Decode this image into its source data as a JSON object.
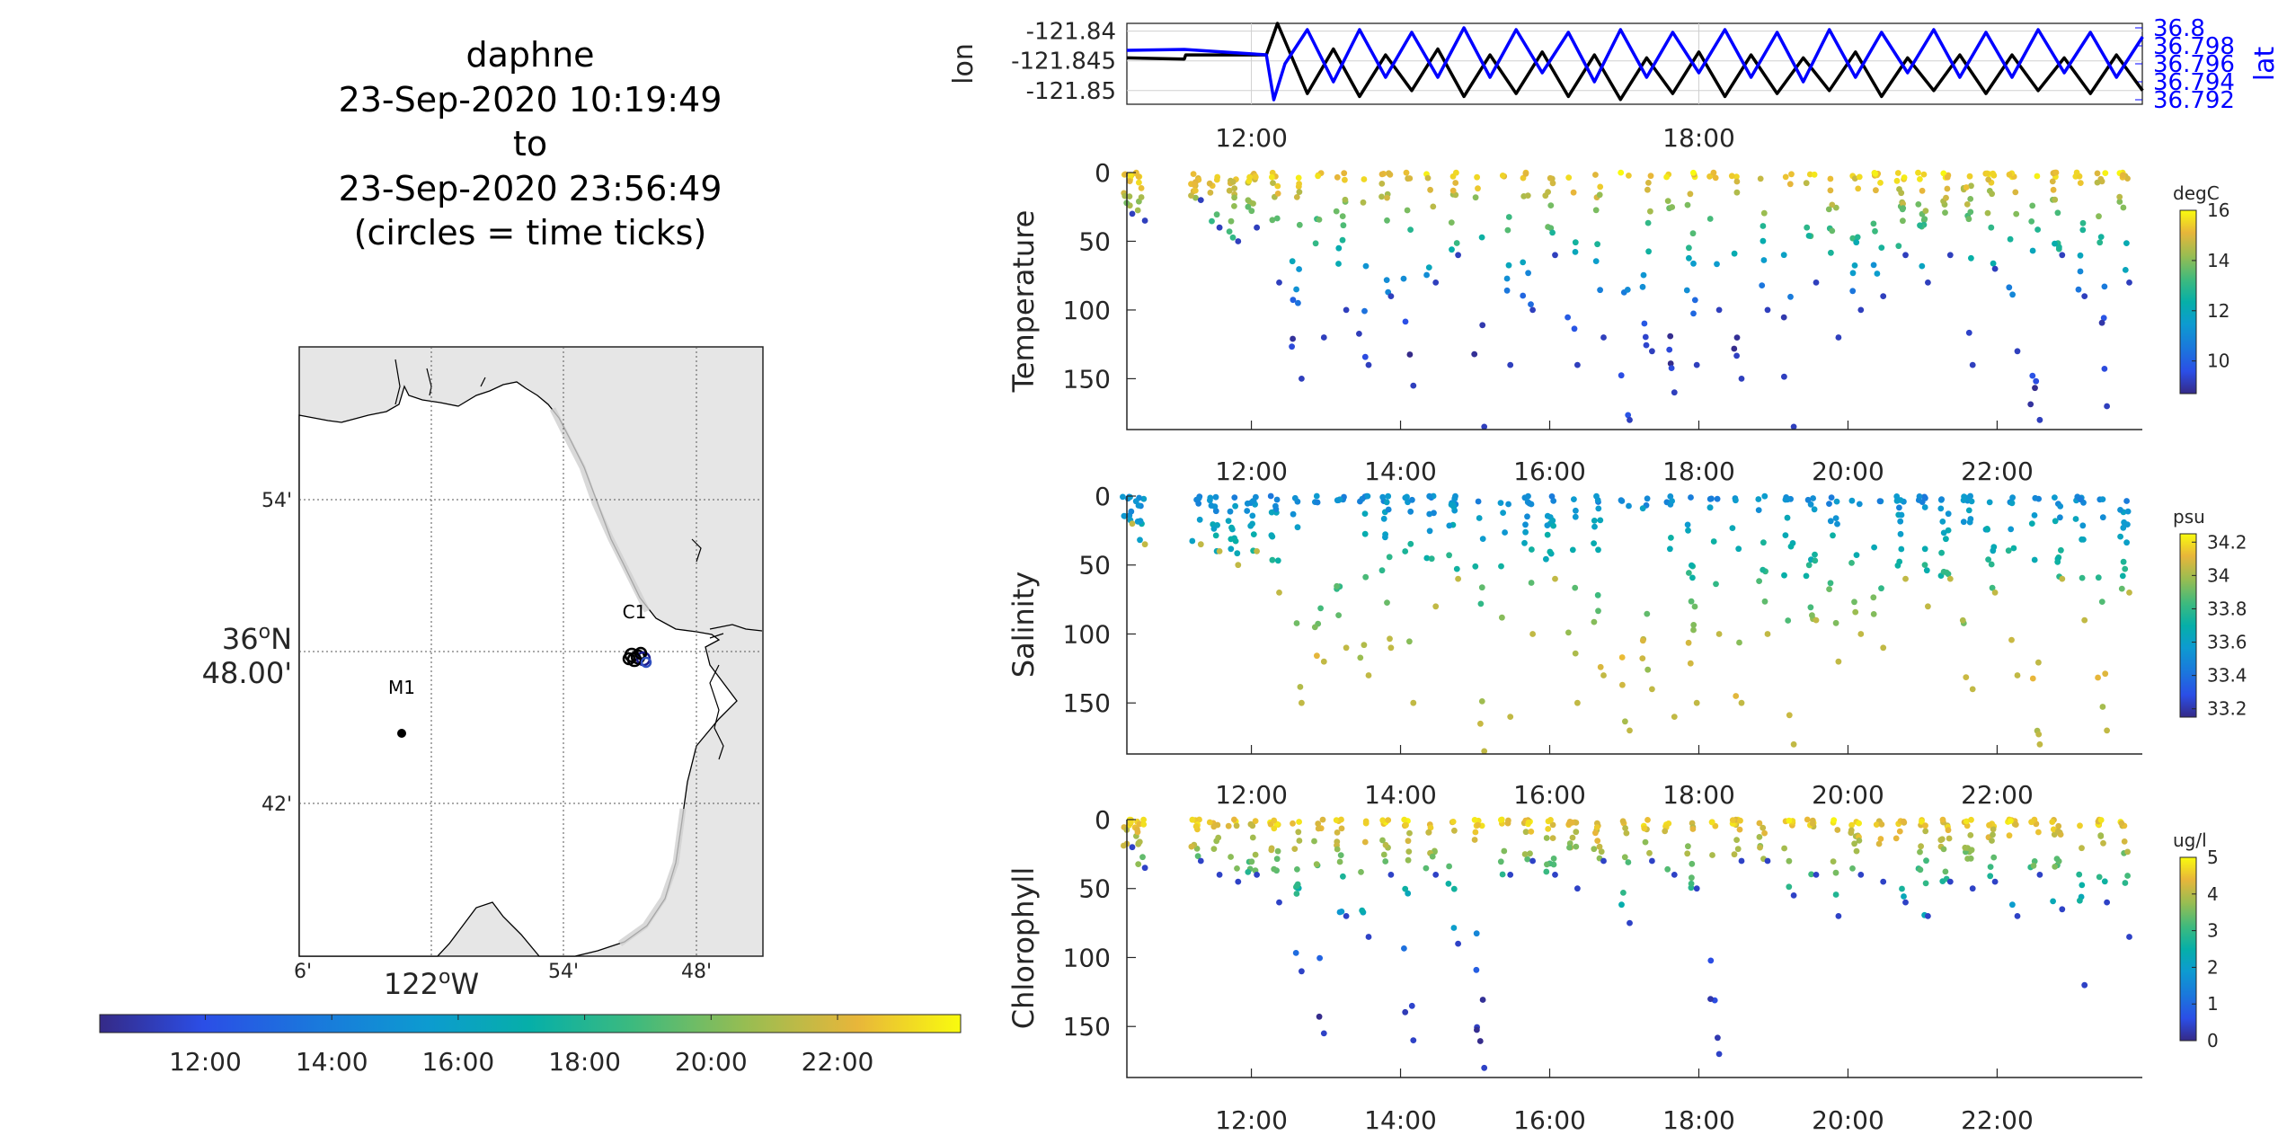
{
  "title": {
    "lines": [
      "daphne",
      "23-Sep-2020 10:19:49",
      "to",
      "23-Sep-2020 23:56:49",
      "(circles = time ticks)"
    ]
  },
  "time_ticks": [
    "12:00",
    "14:00",
    "16:00",
    "18:00",
    "20:00",
    "22:00"
  ],
  "track_ticks": [
    "12:00",
    "18:00"
  ],
  "map": {
    "lat_ticks": [
      "54'",
      "42'"
    ],
    "lat_center": [
      "36",
      "o",
      "N",
      "48.00'"
    ],
    "lon_ticks": [
      "6'",
      "54'",
      "48'"
    ],
    "lon_center": [
      "122",
      "o",
      "W"
    ],
    "stations": [
      {
        "name": "M1",
        "lon": -122.025,
        "lat": 36.747
      },
      {
        "name": "C1",
        "lon": -121.861,
        "lat": 36.796
      }
    ],
    "land_color": "#e6e6e6",
    "sea_color": "#ffffff"
  },
  "colors": {
    "lon_line": "#000000",
    "lat_line": "#0000ff",
    "axis": "#262626"
  },
  "chart_data": [
    {
      "type": "line",
      "name": "track",
      "x_range": [
        "10:19:49",
        "23:56:49"
      ],
      "ylabel": "lon",
      "y2label": "lat",
      "yticks": [
        "-121.84",
        "-121.845",
        "-121.85"
      ],
      "y2ticks": [
        "36.8",
        "36.798",
        "36.796",
        "36.794",
        "36.792"
      ],
      "ylim": [
        -121.8523,
        -121.8387
      ],
      "y2lim": [
        36.7915,
        36.8005
      ],
      "grid": true,
      "series": [
        {
          "name": "lon",
          "color": "#000000",
          "x": [
            10.33,
            11.1,
            11.12,
            12.2,
            12.35,
            12.75,
            13.1,
            13.45,
            13.8,
            14.15,
            14.5,
            14.85,
            15.2,
            15.55,
            15.9,
            16.25,
            16.6,
            16.95,
            17.3,
            17.65,
            18.0,
            18.35,
            18.7,
            19.05,
            19.4,
            19.75,
            20.1,
            20.45,
            20.8,
            21.15,
            21.5,
            21.85,
            22.2,
            22.55,
            22.9,
            23.25,
            23.6,
            23.95
          ],
          "y": [
            -121.8445,
            -121.8447,
            -121.844,
            -121.844,
            -121.8387,
            -121.8505,
            -121.843,
            -121.851,
            -121.844,
            -121.85,
            -121.843,
            -121.851,
            -121.844,
            -121.8505,
            -121.8435,
            -121.851,
            -121.844,
            -121.8515,
            -121.8445,
            -121.8505,
            -121.8435,
            -121.851,
            -121.844,
            -121.8505,
            -121.8445,
            -121.85,
            -121.8435,
            -121.851,
            -121.8445,
            -121.85,
            -121.844,
            -121.8505,
            -121.844,
            -121.85,
            -121.8445,
            -121.8505,
            -121.844,
            -121.85
          ]
        },
        {
          "name": "lat",
          "color": "#0000ff",
          "x": [
            10.33,
            11.1,
            12.2,
            12.3,
            12.45,
            12.75,
            13.1,
            13.45,
            13.8,
            14.15,
            14.5,
            14.85,
            15.2,
            15.55,
            15.9,
            16.25,
            16.6,
            16.95,
            17.3,
            17.65,
            18.0,
            18.35,
            18.7,
            19.05,
            19.4,
            19.75,
            20.1,
            20.45,
            20.8,
            21.15,
            21.5,
            21.85,
            22.2,
            22.55,
            22.9,
            23.25,
            23.6,
            23.95
          ],
          "y": [
            36.7975,
            36.7976,
            36.797,
            36.792,
            36.796,
            36.7998,
            36.794,
            36.7998,
            36.7945,
            36.7995,
            36.7945,
            36.8,
            36.7945,
            36.7998,
            36.795,
            36.7995,
            36.794,
            36.7998,
            36.7945,
            36.7995,
            36.795,
            36.7998,
            36.7945,
            36.7995,
            36.794,
            36.7998,
            36.7945,
            36.7995,
            36.795,
            36.7998,
            36.7945,
            36.7995,
            36.7945,
            36.7998,
            36.795,
            36.7995,
            36.7945,
            36.799
          ]
        }
      ]
    },
    {
      "type": "scatter",
      "name": "temperature",
      "ylabel": "Temperature",
      "yticks": [
        "0",
        "50",
        "100",
        "150"
      ],
      "ylim": [
        0,
        187
      ],
      "colorbar": {
        "unit": "degC",
        "ticks": [
          "16",
          "14",
          "12",
          "10"
        ],
        "range": [
          8.7,
          16
        ]
      },
      "profiles": [
        10.33,
        10.5,
        11.25,
        11.5,
        11.75,
        12.0,
        12.3,
        12.6,
        12.9,
        13.2,
        13.5,
        13.8,
        14.1,
        14.4,
        14.7,
        15.05,
        15.4,
        15.7,
        16.0,
        16.3,
        16.65,
        17.0,
        17.3,
        17.6,
        17.9,
        18.2,
        18.5,
        18.85,
        19.2,
        19.5,
        19.8,
        20.1,
        20.4,
        20.7,
        21.0,
        21.3,
        21.6,
        21.9,
        22.2,
        22.5,
        22.8,
        23.1,
        23.4,
        23.7
      ],
      "max_depth": [
        30,
        35,
        20,
        40,
        50,
        40,
        80,
        150,
        120,
        100,
        140,
        90,
        155,
        80,
        60,
        185,
        140,
        100,
        60,
        140,
        120,
        180,
        130,
        160,
        140,
        100,
        150,
        100,
        185,
        80,
        120,
        100,
        90,
        60,
        80,
        60,
        140,
        70,
        130,
        180,
        60,
        90,
        170,
        80
      ],
      "surface_value": 15.5,
      "deep_value": 9.2
    },
    {
      "type": "scatter",
      "name": "salinity",
      "ylabel": "Salinity",
      "yticks": [
        "0",
        "50",
        "100",
        "150"
      ],
      "ylim": [
        0,
        187
      ],
      "colorbar": {
        "unit": "psu",
        "ticks": [
          "34.2",
          "34",
          "33.8",
          "33.6",
          "33.4",
          "33.2"
        ],
        "range": [
          33.15,
          34.25
        ]
      },
      "profiles": [
        10.33,
        10.5,
        11.25,
        11.5,
        11.75,
        12.0,
        12.3,
        12.6,
        12.9,
        13.2,
        13.5,
        13.8,
        14.1,
        14.4,
        14.7,
        15.05,
        15.4,
        15.7,
        16.0,
        16.3,
        16.65,
        17.0,
        17.3,
        17.6,
        17.9,
        18.2,
        18.5,
        18.85,
        19.2,
        19.5,
        19.8,
        20.1,
        20.4,
        20.7,
        21.0,
        21.3,
        21.6,
        21.9,
        22.2,
        22.5,
        22.8,
        23.1,
        23.4,
        23.7
      ],
      "max_depth": [
        20,
        35,
        35,
        40,
        50,
        40,
        70,
        150,
        120,
        110,
        130,
        110,
        150,
        80,
        60,
        185,
        160,
        100,
        60,
        150,
        130,
        170,
        140,
        160,
        150,
        100,
        150,
        100,
        180,
        90,
        120,
        100,
        110,
        60,
        80,
        60,
        140,
        70,
        130,
        180,
        60,
        90,
        170,
        70
      ],
      "surface_value": 33.5,
      "deep_value": 34.05
    },
    {
      "type": "scatter",
      "name": "chlorophyll",
      "ylabel": "Chlorophyll",
      "yticks": [
        "0",
        "50",
        "100",
        "150"
      ],
      "ylim": [
        0,
        187
      ],
      "colorbar": {
        "unit": "ug/l",
        "ticks": [
          "5",
          "4",
          "3",
          "2",
          "1",
          "0"
        ],
        "range": [
          0,
          5
        ]
      },
      "profiles": [
        10.33,
        10.5,
        11.25,
        11.5,
        11.75,
        12.0,
        12.3,
        12.6,
        12.9,
        13.2,
        13.5,
        13.8,
        14.1,
        14.4,
        14.7,
        15.05,
        15.4,
        15.7,
        16.0,
        16.3,
        16.65,
        17.0,
        17.3,
        17.6,
        17.9,
        18.2,
        18.5,
        18.85,
        19.2,
        19.5,
        19.8,
        20.1,
        20.4,
        20.7,
        21.0,
        21.3,
        21.6,
        21.9,
        22.2,
        22.5,
        22.8,
        23.1,
        23.4,
        23.7
      ],
      "max_depth": [
        20,
        35,
        30,
        40,
        45,
        40,
        60,
        110,
        155,
        70,
        85,
        40,
        160,
        40,
        90,
        180,
        40,
        30,
        40,
        50,
        30,
        75,
        30,
        40,
        50,
        170,
        30,
        30,
        55,
        40,
        70,
        40,
        45,
        60,
        70,
        45,
        50,
        45,
        70,
        40,
        65,
        120,
        60,
        85
      ],
      "surface_value": 4.6,
      "deep_value": 0.4
    }
  ],
  "time_colorbar": {
    "ticks": [
      "12:00",
      "14:00",
      "16:00",
      "18:00",
      "20:00",
      "22:00"
    ],
    "range": [
      "10:19:49",
      "23:56:49"
    ]
  }
}
